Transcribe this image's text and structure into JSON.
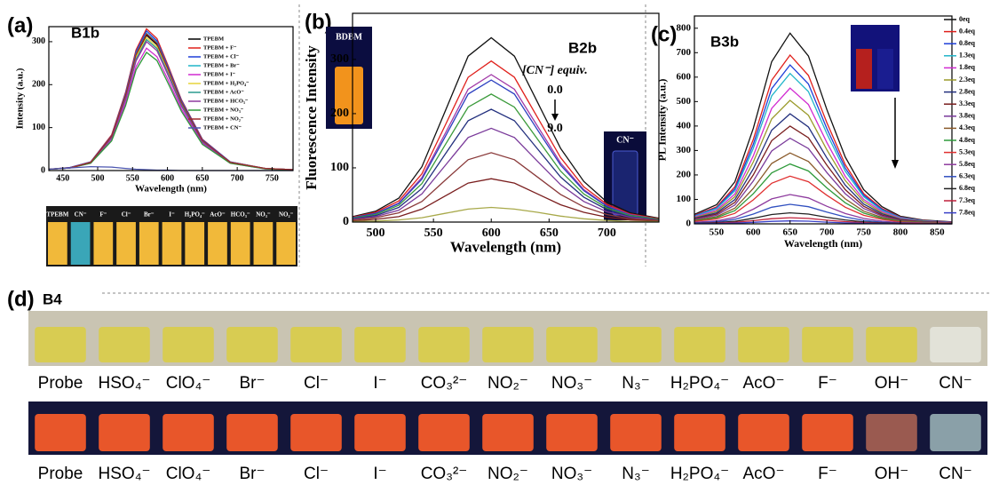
{
  "chart_data": [
    {
      "type": "line",
      "panel_label": "(a)",
      "title": "B1b",
      "x_label": "Wavelength (nm)",
      "y_label": "Intensity (a.u.)",
      "x": [
        430,
        460,
        490,
        520,
        540,
        555,
        570,
        585,
        600,
        620,
        650,
        690,
        740,
        780
      ],
      "xlim": [
        430,
        780
      ],
      "xticks": [
        450,
        500,
        550,
        600,
        650,
        700,
        750
      ],
      "ylim": [
        0,
        335
      ],
      "yticks": [
        0,
        100,
        200,
        300
      ],
      "series": [
        {
          "name": "TPEBM",
          "color": "#000000",
          "values": [
            3,
            6,
            19,
            79,
            173,
            268,
            315,
            293,
            236,
            158,
            69,
            19,
            5,
            2
          ]
        },
        {
          "name": "TPEBM + F⁻",
          "color": "#e0201b",
          "values": [
            3,
            7,
            20,
            83,
            182,
            281,
            330,
            307,
            248,
            165,
            73,
            20,
            5,
            2
          ]
        },
        {
          "name": "TPEBM + Cl⁻",
          "color": "#1f3fd8",
          "values": [
            3,
            7,
            20,
            81,
            179,
            276,
            325,
            302,
            244,
            163,
            72,
            20,
            5,
            2
          ]
        },
        {
          "name": "TPEBM + Br⁻",
          "color": "#21b5c9",
          "values": [
            3,
            6,
            19,
            80,
            176,
            272,
            320,
            298,
            240,
            160,
            70,
            19,
            5,
            2
          ]
        },
        {
          "name": "TPEBM + I⁻",
          "color": "#d12bd1",
          "values": [
            3,
            6,
            17,
            71,
            157,
            242,
            285,
            265,
            214,
            143,
            63,
            17,
            4,
            1
          ]
        },
        {
          "name": "TPEBM + H₂PO₄⁻",
          "color": "#e6d23a",
          "values": [
            3,
            6,
            19,
            78,
            171,
            264,
            310,
            288,
            233,
            155,
            68,
            19,
            5,
            2
          ]
        },
        {
          "name": "TPEBM + AcO⁻",
          "color": "#2a9a8f",
          "values": [
            3,
            6,
            18,
            76,
            168,
            259,
            305,
            284,
            229,
            153,
            67,
            18,
            5,
            2
          ]
        },
        {
          "name": "TPEBM + HCO₃⁻",
          "color": "#8e3b9e",
          "values": [
            3,
            6,
            18,
            75,
            165,
            255,
            300,
            279,
            225,
            150,
            66,
            18,
            5,
            2
          ]
        },
        {
          "name": "TPEBM + NO₃⁻",
          "color": "#2e9a3a",
          "values": [
            3,
            6,
            17,
            69,
            151,
            234,
            275,
            256,
            206,
            138,
            61,
            17,
            4,
            1
          ]
        },
        {
          "name": "TPEBM + NO₂⁻",
          "color": "#a0282a",
          "values": [
            3,
            6,
            19,
            80,
            175,
            270,
            318,
            296,
            239,
            159,
            70,
            19,
            5,
            2
          ]
        },
        {
          "name": "TPEBM + CN⁻",
          "color": "#4b55b0",
          "values": [
            3,
            6,
            9,
            8,
            5,
            3,
            2,
            1,
            1,
            0,
            0,
            0,
            0,
            0
          ]
        }
      ],
      "photo_labels": [
        "TPEBM",
        "CN⁻",
        "F⁻",
        "Cl⁻",
        "Br⁻",
        "I⁻",
        "H₂PO₄⁻",
        "AcO⁻",
        "HCO₃⁻",
        "NO₃⁻",
        "NO₂⁻"
      ]
    },
    {
      "type": "line",
      "panel_label": "(b)",
      "title": "B2b",
      "x_label": "Wavelength (nm)",
      "y_label": "Fluorescence Intensity",
      "annotation": "[CN⁻] equiv.",
      "range_start": "0.0",
      "range_end": "9.0",
      "inset_labels": [
        "BDBM",
        "CN⁻"
      ],
      "x": [
        480,
        500,
        520,
        540,
        560,
        580,
        600,
        620,
        640,
        660,
        680,
        700,
        720,
        745
      ],
      "xlim": [
        480,
        745
      ],
      "xticks": [
        500,
        550,
        600,
        650,
        700
      ],
      "ylim": [
        0,
        385
      ],
      "yticks": [
        0,
        100,
        200,
        300
      ],
      "series": [
        {
          "color": "#111111",
          "values": [
            10,
            20,
            44,
            102,
            204,
            306,
            340,
            306,
            221,
            136,
            75,
            37,
            17,
            7
          ]
        },
        {
          "color": "#e0201b",
          "values": [
            9,
            18,
            39,
            89,
            178,
            267,
            297,
            267,
            193,
            119,
            65,
            33,
            15,
            6
          ]
        },
        {
          "color": "#a23aa8",
          "values": [
            8,
            16,
            35,
            82,
            163,
            245,
            272,
            245,
            177,
            109,
            60,
            30,
            14,
            5
          ]
        },
        {
          "color": "#2b3fc0",
          "values": [
            8,
            16,
            34,
            79,
            157,
            236,
            262,
            236,
            170,
            105,
            58,
            29,
            13,
            5
          ]
        },
        {
          "color": "#3a9a3a",
          "values": [
            7,
            14,
            31,
            71,
            142,
            212,
            236,
            212,
            153,
            94,
            52,
            26,
            12,
            5
          ]
        },
        {
          "color": "#23307e",
          "values": [
            6,
            12,
            27,
            62,
            125,
            187,
            208,
            187,
            135,
            83,
            46,
            23,
            10,
            4
          ]
        },
        {
          "color": "#7a3a9a",
          "values": [
            5,
            10,
            22,
            52,
            104,
            156,
            173,
            156,
            112,
            69,
            38,
            19,
            9,
            3
          ]
        },
        {
          "color": "#8a3a3a",
          "values": [
            4,
            8,
            17,
            38,
            77,
            115,
            128,
            115,
            83,
            51,
            28,
            14,
            6,
            3
          ]
        },
        {
          "color": "#7a1e1e",
          "values": [
            2,
            5,
            10,
            24,
            48,
            72,
            80,
            72,
            52,
            32,
            18,
            9,
            4,
            2
          ]
        },
        {
          "color": "#a8a94a",
          "values": [
            1,
            2,
            4,
            8,
            16,
            24,
            27,
            24,
            18,
            11,
            6,
            3,
            1,
            1
          ]
        }
      ]
    },
    {
      "type": "line",
      "panel_label": "(c)",
      "title": "B3b",
      "x_label": "Wavelength (nm)",
      "y_label": "PL Intensity (a.u.)",
      "x": [
        520,
        550,
        575,
        600,
        625,
        650,
        675,
        700,
        725,
        750,
        775,
        800,
        830,
        870
      ],
      "xlim": [
        520,
        870
      ],
      "xticks": [
        550,
        600,
        650,
        700,
        750,
        800,
        850
      ],
      "ylim": [
        0,
        850
      ],
      "yticks": [
        0,
        100,
        200,
        300,
        400,
        500,
        600,
        700,
        800
      ],
      "series": [
        {
          "name": "0eq",
          "color": "#111111",
          "values": [
            39,
            78,
            172,
            390,
            663,
            780,
            686,
            468,
            273,
            140,
            70,
            31,
            16,
            8
          ]
        },
        {
          "name": "0.4eq",
          "color": "#e0201b",
          "values": [
            35,
            69,
            152,
            345,
            587,
            690,
            607,
            414,
            242,
            124,
            62,
            28,
            14,
            7
          ]
        },
        {
          "name": "0.8eq",
          "color": "#1f3fd8",
          "values": [
            33,
            65,
            143,
            325,
            553,
            650,
            572,
            390,
            228,
            117,
            59,
            26,
            13,
            7
          ]
        },
        {
          "name": "1.3eq",
          "color": "#21b5c9",
          "values": [
            31,
            62,
            135,
            308,
            523,
            615,
            541,
            369,
            215,
            111,
            55,
            25,
            12,
            6
          ]
        },
        {
          "name": "1.8eq",
          "color": "#d12bd1",
          "values": [
            28,
            56,
            122,
            278,
            472,
            555,
            488,
            333,
            194,
            100,
            50,
            22,
            11,
            6
          ]
        },
        {
          "name": "2.3eq",
          "color": "#9a9a2a",
          "values": [
            25,
            51,
            111,
            253,
            429,
            505,
            444,
            303,
            177,
            91,
            45,
            20,
            10,
            5
          ]
        },
        {
          "name": "2.8eq",
          "color": "#23307e",
          "values": [
            23,
            45,
            99,
            225,
            383,
            450,
            396,
            270,
            158,
            81,
            41,
            18,
            9,
            5
          ]
        },
        {
          "name": "3.3eq",
          "color": "#7a1e1e",
          "values": [
            20,
            40,
            88,
            200,
            340,
            400,
            352,
            240,
            140,
            72,
            36,
            16,
            8,
            4
          ]
        },
        {
          "name": "3.8eq",
          "color": "#7a3a9a",
          "values": [
            18,
            35,
            77,
            175,
            298,
            350,
            308,
            210,
            123,
            63,
            32,
            14,
            7,
            4
          ]
        },
        {
          "name": "4.3eq",
          "color": "#8a5a2a",
          "values": [
            15,
            29,
            64,
            145,
            247,
            290,
            255,
            174,
            102,
            52,
            26,
            12,
            6,
            3
          ]
        },
        {
          "name": "4.8eq",
          "color": "#2e9a3a",
          "values": [
            12,
            25,
            54,
            123,
            208,
            245,
            216,
            147,
            86,
            44,
            22,
            10,
            5,
            2
          ]
        },
        {
          "name": "5.3eq",
          "color": "#e03030",
          "values": [
            10,
            20,
            43,
            98,
            166,
            195,
            172,
            117,
            68,
            35,
            18,
            8,
            4,
            2
          ]
        },
        {
          "name": "5.8eq",
          "color": "#8e3b9e",
          "values": [
            6,
            12,
            26,
            60,
            102,
            120,
            106,
            72,
            42,
            22,
            11,
            5,
            2,
            1
          ]
        },
        {
          "name": "6.3eq",
          "color": "#3050c0",
          "values": [
            4,
            8,
            18,
            40,
            68,
            80,
            70,
            48,
            28,
            14,
            7,
            3,
            2,
            1
          ]
        },
        {
          "name": "6.8eq",
          "color": "#222222",
          "values": [
            2,
            5,
            10,
            23,
            38,
            45,
            40,
            27,
            16,
            8,
            4,
            2,
            1,
            0
          ]
        },
        {
          "name": "7.3eq",
          "color": "#c0203a",
          "values": [
            1,
            3,
            6,
            13,
            21,
            25,
            22,
            15,
            9,
            5,
            2,
            1,
            1,
            0
          ]
        },
        {
          "name": "7.8eq",
          "color": "#3a40c8",
          "values": [
            1,
            1,
            3,
            6,
            10,
            12,
            11,
            7,
            4,
            2,
            1,
            0,
            0,
            0
          ]
        }
      ]
    }
  ],
  "panel_d": {
    "panel_label": "(d)",
    "title": "B4",
    "labels": [
      "Probe",
      "HSO₄⁻",
      "ClO₄⁻",
      "Br⁻",
      "Cl⁻",
      "I⁻",
      "CO₃²⁻",
      "NO₂⁻",
      "NO₃⁻",
      "N₃⁻",
      "H₂PO₄⁻",
      "AcO⁻",
      "F⁻",
      "OH⁻",
      "CN⁻"
    ]
  }
}
